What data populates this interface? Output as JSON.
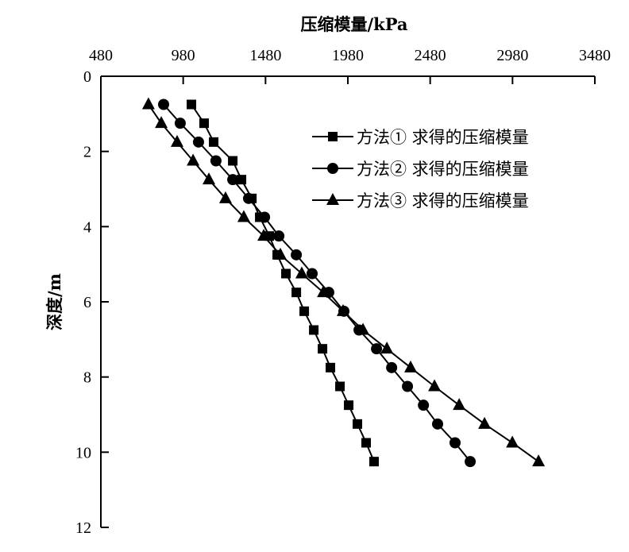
{
  "chart_data": {
    "type": "line",
    "title": "压缩模量/kPa",
    "xlabel": "压缩模量/kPa",
    "ylabel": "深度/m",
    "xlim": [
      480,
      3480
    ],
    "ylim": [
      0,
      12
    ],
    "y_inverted": true,
    "x_axis_position": "top",
    "xticks": [
      480,
      980,
      1480,
      1980,
      2480,
      2980,
      3480
    ],
    "yticks": [
      0,
      2,
      4,
      6,
      8,
      10,
      12
    ],
    "grid": false,
    "legend_position": "top-right",
    "depth": [
      0.75,
      1.25,
      1.75,
      2.25,
      2.75,
      3.25,
      3.75,
      4.25,
      4.75,
      5.25,
      5.75,
      6.25,
      6.75,
      7.25,
      7.75,
      8.25,
      8.75,
      9.25,
      9.75,
      10.25
    ],
    "series": [
      {
        "name": "方法①求得的压缩模量",
        "marker": "square",
        "values": [
          1030,
          1107,
          1165,
          1281,
          1334,
          1397,
          1445,
          1503,
          1551,
          1604,
          1667,
          1715,
          1773,
          1826,
          1874,
          1932,
          1985,
          2038,
          2091,
          2139
        ]
      },
      {
        "name": "方法②求得的压缩模量",
        "marker": "circle",
        "values": [
          861,
          962,
          1073,
          1179,
          1281,
          1377,
          1474,
          1561,
          1667,
          1763,
          1864,
          1956,
          2048,
          2154,
          2246,
          2342,
          2439,
          2525,
          2631,
          2723
        ]
      },
      {
        "name": "方法③求得的压缩模量",
        "marker": "triangle",
        "values": [
          769,
          847,
          943,
          1040,
          1136,
          1237,
          1348,
          1469,
          1570,
          1700,
          1831,
          1951,
          2072,
          2217,
          2361,
          2506,
          2656,
          2810,
          2979,
          3138
        ]
      }
    ]
  }
}
